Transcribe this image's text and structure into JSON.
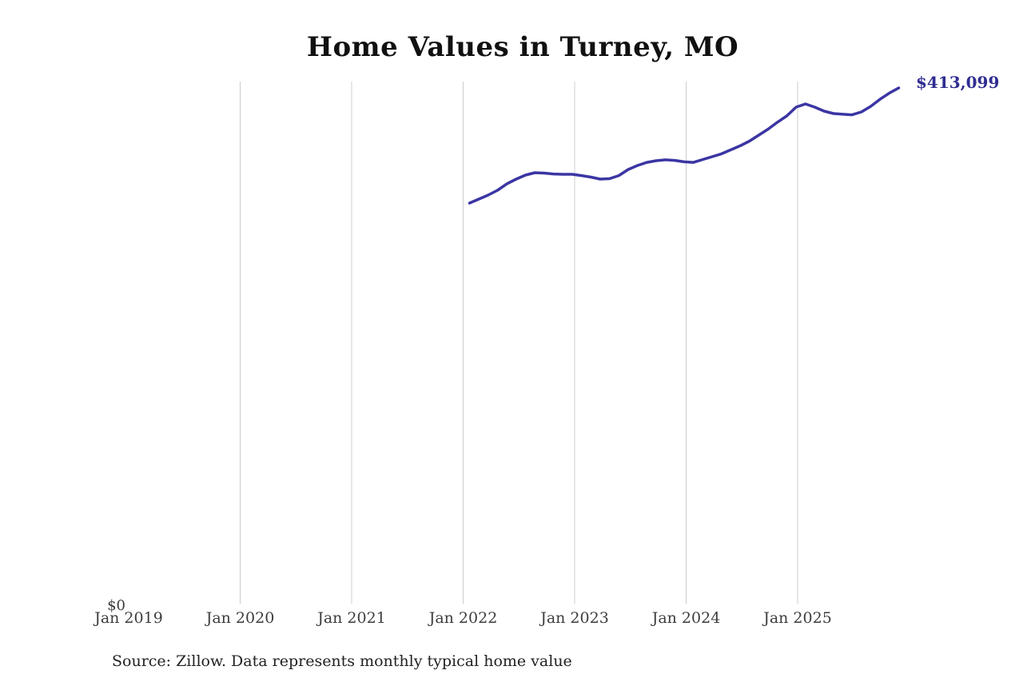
{
  "page": {
    "title": "Home Values in Turney, MO",
    "source_note": "Source: Zillow. Data represents monthly typical home value"
  },
  "chart_data": {
    "type": "line",
    "title": "Home Values in Turney, MO",
    "series_name": "Monthly typical home value",
    "x": [
      "Jan 2022",
      "Feb 2022",
      "Mar 2022",
      "Apr 2022",
      "May 2022",
      "Jun 2022",
      "Jul 2022",
      "Aug 2022",
      "Sep 2022",
      "Oct 2022",
      "Nov 2022",
      "Dec 2022",
      "Jan 2023",
      "Feb 2023",
      "Mar 2023",
      "Apr 2023",
      "May 2023",
      "Jun 2023",
      "Jul 2023",
      "Aug 2023",
      "Sep 2023",
      "Oct 2023",
      "Nov 2023",
      "Dec 2023",
      "Jan 2024",
      "Feb 2024",
      "Mar 2024",
      "Apr 2024",
      "May 2024",
      "Jun 2024",
      "Jul 2024",
      "Aug 2024",
      "Sep 2024",
      "Oct 2024",
      "Nov 2024",
      "Dec 2024",
      "Jan 2025",
      "Feb 2025",
      "Mar 2025",
      "Apr 2025",
      "May 2025",
      "Jun 2025",
      "Jul 2025",
      "Aug 2025",
      "Sep 2025",
      "Oct 2025",
      "Nov 2025"
    ],
    "values": [
      320900,
      324100,
      327300,
      331100,
      336300,
      340100,
      343300,
      345200,
      344900,
      344200,
      343900,
      343900,
      342900,
      341700,
      340100,
      340400,
      342900,
      347800,
      351000,
      353500,
      354800,
      355500,
      355100,
      353900,
      353500,
      355800,
      358000,
      360300,
      363500,
      366700,
      370500,
      375300,
      380100,
      385600,
      390700,
      397700,
      400300,
      397700,
      394500,
      392600,
      392000,
      391600,
      393900,
      398400,
      404100,
      409000,
      413099
    ],
    "last_value": 413099,
    "end_label": "$413,099",
    "x_tick_labels": [
      "Jan 2019",
      "Jan 2020",
      "Jan 2021",
      "Jan 2022",
      "Jan 2023",
      "Jan 2024",
      "Jan 2025"
    ],
    "y_zero_label": "$0",
    "ylim": [
      0,
      418000
    ],
    "xlim": [
      "Jan 2019",
      "Dec 2025"
    ],
    "grid": "vertical-only",
    "legend": "none",
    "line_color": "#3b35a3",
    "end_label_color": "#2f2d91",
    "gridline_color": "#cccccc",
    "source": "Source: Zillow. Data represents monthly typical home value"
  }
}
